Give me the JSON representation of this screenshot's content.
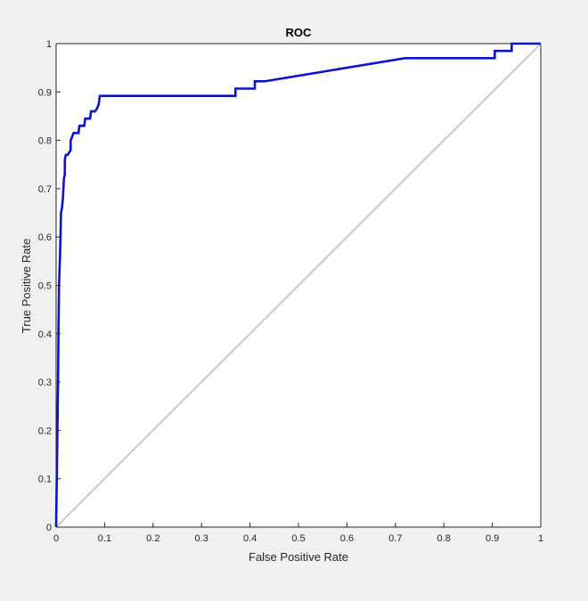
{
  "chart_data": {
    "type": "line",
    "title": "ROC",
    "xlabel": "False Positive Rate",
    "ylabel": "True Positive Rate",
    "xlim": [
      0,
      1
    ],
    "ylim": [
      0,
      1
    ],
    "xticks": [
      "0",
      "0.1",
      "0.2",
      "0.3",
      "0.4",
      "0.5",
      "0.6",
      "0.7",
      "0.8",
      "0.9",
      "1"
    ],
    "yticks": [
      "0",
      "0.1",
      "0.2",
      "0.3",
      "0.4",
      "0.5",
      "0.6",
      "0.7",
      "0.8",
      "0.9",
      "1"
    ],
    "grid": false,
    "series": [
      {
        "color": "#0a14c8",
        "x": [
          0,
          0.002,
          0.004,
          0.005,
          0.006,
          0.008,
          0.009,
          0.01,
          0.012,
          0.014,
          0.016,
          0.018,
          0.018,
          0.02,
          0.024,
          0.03,
          0.03,
          0.034,
          0.036,
          0.046,
          0.048,
          0.058,
          0.06,
          0.07,
          0.072,
          0.08,
          0.084,
          0.088,
          0.09,
          0.37,
          0.37,
          0.41,
          0.41,
          0.43,
          0.72,
          0.905,
          0.905,
          0.94,
          0.94,
          1
        ],
        "y": [
          0,
          0.15,
          0.3,
          0.42,
          0.5,
          0.56,
          0.6,
          0.65,
          0.66,
          0.68,
          0.72,
          0.73,
          0.76,
          0.77,
          0.77,
          0.78,
          0.8,
          0.81,
          0.815,
          0.815,
          0.83,
          0.83,
          0.845,
          0.845,
          0.86,
          0.86,
          0.865,
          0.875,
          0.892,
          0.892,
          0.907,
          0.907,
          0.922,
          0.922,
          0.97,
          0.97,
          0.985,
          0.985,
          1,
          1
        ]
      },
      {
        "color": "#cccccc",
        "x": [
          0,
          1
        ],
        "y": [
          0,
          1
        ]
      }
    ]
  }
}
